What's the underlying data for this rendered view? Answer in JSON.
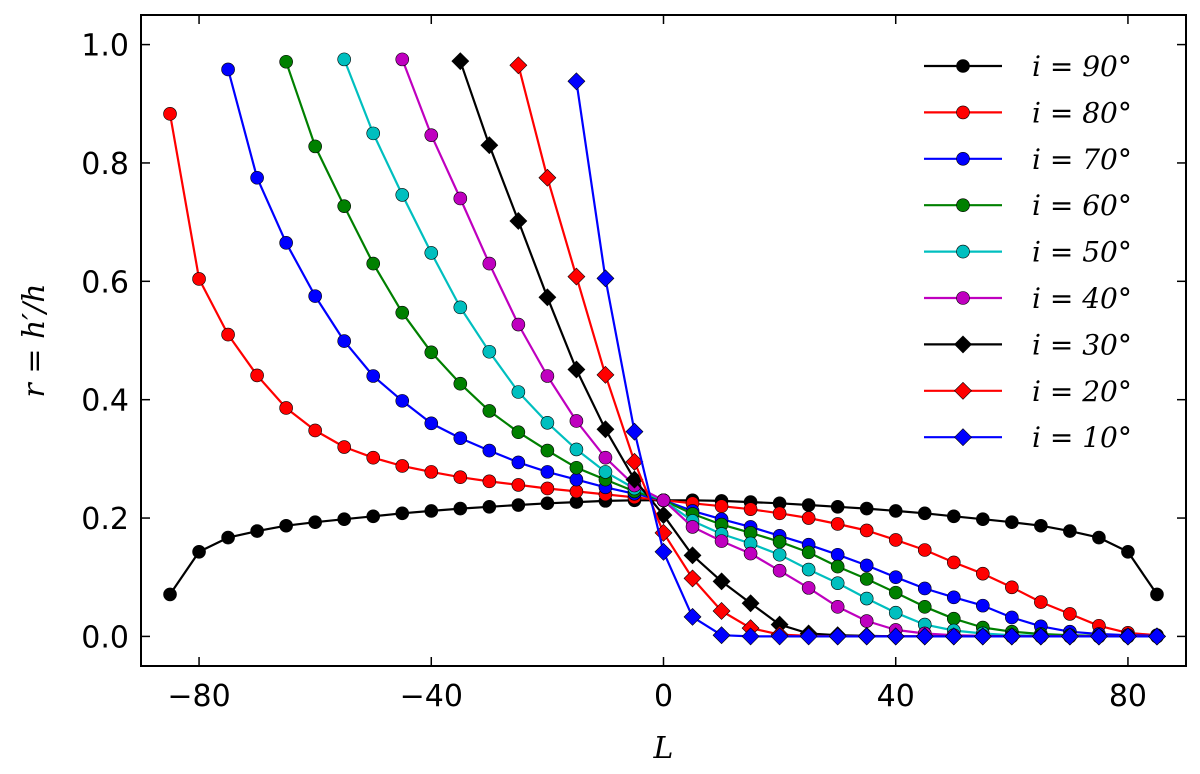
{
  "chart_data": {
    "type": "line",
    "title": "",
    "xlabel": "L",
    "ylabel": "r = h′/h",
    "xlim": [
      -90,
      90
    ],
    "ylim": [
      -0.05,
      1.05
    ],
    "xticks": [
      -80,
      -40,
      0,
      40,
      80
    ],
    "xtick_labels": [
      "−80",
      "−40",
      "0",
      "40",
      "80"
    ],
    "yticks": [
      0.0,
      0.2,
      0.4,
      0.6,
      0.8,
      1.0
    ],
    "ytick_labels": [
      "0.0",
      "0.2",
      "0.4",
      "0.6",
      "0.8",
      "1.0"
    ],
    "grid": false,
    "legend_position": "top-right",
    "series": [
      {
        "name": "i = 90°",
        "color": "#000000",
        "marker": "circle",
        "x": [
          -85,
          -80,
          -75,
          -70,
          -65,
          -60,
          -55,
          -50,
          -45,
          -40,
          -35,
          -30,
          -25,
          -20,
          -15,
          -10,
          -5,
          0,
          5,
          10,
          15,
          20,
          25,
          30,
          35,
          40,
          45,
          50,
          55,
          60,
          65,
          70,
          75,
          80,
          85
        ],
        "y": [
          0.071,
          0.143,
          0.167,
          0.178,
          0.187,
          0.193,
          0.198,
          0.203,
          0.208,
          0.212,
          0.216,
          0.219,
          0.222,
          0.225,
          0.227,
          0.229,
          0.23,
          0.23,
          0.23,
          0.229,
          0.227,
          0.225,
          0.222,
          0.219,
          0.216,
          0.212,
          0.208,
          0.203,
          0.198,
          0.193,
          0.187,
          0.178,
          0.167,
          0.143,
          0.071
        ]
      },
      {
        "name": "i = 80°",
        "color": "#ff0000",
        "marker": "circle",
        "x": [
          -85,
          -80,
          -75,
          -70,
          -65,
          -60,
          -55,
          -50,
          -45,
          -40,
          -35,
          -30,
          -25,
          -20,
          -15,
          -10,
          -5,
          0,
          5,
          10,
          15,
          20,
          25,
          30,
          35,
          40,
          45,
          50,
          55,
          60,
          65,
          70,
          75,
          80,
          85
        ],
        "y": [
          0.883,
          0.604,
          0.51,
          0.441,
          0.386,
          0.348,
          0.32,
          0.302,
          0.288,
          0.278,
          0.269,
          0.262,
          0.256,
          0.25,
          0.245,
          0.24,
          0.235,
          0.23,
          0.225,
          0.22,
          0.215,
          0.208,
          0.2,
          0.19,
          0.179,
          0.163,
          0.146,
          0.125,
          0.106,
          0.083,
          0.058,
          0.038,
          0.018,
          0.006,
          0.002
        ]
      },
      {
        "name": "i = 70°",
        "color": "#0000ff",
        "marker": "circle",
        "x": [
          -75,
          -70,
          -65,
          -60,
          -55,
          -50,
          -45,
          -40,
          -35,
          -30,
          -25,
          -20,
          -15,
          -10,
          -5,
          0,
          5,
          10,
          15,
          20,
          25,
          30,
          35,
          40,
          45,
          50,
          55,
          60,
          65,
          70,
          75,
          80,
          85
        ],
        "y": [
          0.958,
          0.775,
          0.665,
          0.575,
          0.499,
          0.44,
          0.398,
          0.36,
          0.335,
          0.314,
          0.294,
          0.278,
          0.265,
          0.252,
          0.241,
          0.23,
          0.212,
          0.198,
          0.185,
          0.17,
          0.155,
          0.138,
          0.12,
          0.1,
          0.081,
          0.066,
          0.052,
          0.032,
          0.017,
          0.008,
          0.004,
          0.002,
          0.001
        ]
      },
      {
        "name": "i = 60°",
        "color": "#008000",
        "marker": "circle",
        "x": [
          -65,
          -60,
          -55,
          -50,
          -45,
          -40,
          -35,
          -30,
          -25,
          -20,
          -15,
          -10,
          -5,
          0,
          5,
          10,
          15,
          20,
          25,
          30,
          35,
          40,
          45,
          50,
          55,
          60,
          65,
          70,
          75,
          80,
          85
        ],
        "y": [
          0.971,
          0.828,
          0.727,
          0.63,
          0.547,
          0.48,
          0.427,
          0.381,
          0.345,
          0.314,
          0.285,
          0.265,
          0.245,
          0.23,
          0.207,
          0.189,
          0.175,
          0.16,
          0.142,
          0.118,
          0.097,
          0.074,
          0.05,
          0.03,
          0.015,
          0.008,
          0.004,
          0.002,
          0.001,
          0.0,
          0.0
        ]
      },
      {
        "name": "i = 50°",
        "color": "#00bfbf",
        "marker": "circle",
        "x": [
          -55,
          -50,
          -45,
          -40,
          -35,
          -30,
          -25,
          -20,
          -15,
          -10,
          -5,
          0,
          5,
          10,
          15,
          20,
          25,
          30,
          35,
          40,
          45,
          50,
          55,
          60,
          65,
          70,
          75,
          80,
          85
        ],
        "y": [
          0.975,
          0.85,
          0.746,
          0.648,
          0.556,
          0.481,
          0.413,
          0.361,
          0.316,
          0.278,
          0.25,
          0.23,
          0.195,
          0.173,
          0.157,
          0.138,
          0.113,
          0.09,
          0.064,
          0.04,
          0.02,
          0.01,
          0.005,
          0.002,
          0.001,
          0.0,
          0.0,
          0.0,
          0.0
        ]
      },
      {
        "name": "i = 40°",
        "color": "#bf00bf",
        "marker": "circle",
        "x": [
          -45,
          -40,
          -35,
          -30,
          -25,
          -20,
          -15,
          -10,
          -5,
          0,
          5,
          10,
          15,
          20,
          25,
          30,
          35,
          40,
          45,
          50,
          55,
          60,
          65,
          70,
          75,
          80,
          85
        ],
        "y": [
          0.975,
          0.847,
          0.74,
          0.63,
          0.527,
          0.44,
          0.364,
          0.302,
          0.255,
          0.23,
          0.185,
          0.161,
          0.14,
          0.111,
          0.082,
          0.05,
          0.026,
          0.011,
          0.005,
          0.002,
          0.001,
          0.0,
          0.0,
          0.0,
          0.0,
          0.0,
          0.0
        ]
      },
      {
        "name": "i = 30°",
        "color": "#000000",
        "marker": "diamond",
        "x": [
          -35,
          -30,
          -25,
          -20,
          -15,
          -10,
          -5,
          0,
          5,
          10,
          15,
          20,
          25,
          30,
          35,
          40,
          45,
          50,
          55,
          60,
          65,
          70,
          75,
          80,
          85
        ],
        "y": [
          0.972,
          0.83,
          0.702,
          0.573,
          0.451,
          0.35,
          0.265,
          0.205,
          0.137,
          0.093,
          0.056,
          0.02,
          0.005,
          0.002,
          0.001,
          0.0,
          0.0,
          0.0,
          0.0,
          0.0,
          0.0,
          0.0,
          0.0,
          0.0,
          0.0
        ]
      },
      {
        "name": "i = 20°",
        "color": "#ff0000",
        "marker": "diamond",
        "x": [
          -25,
          -20,
          -15,
          -10,
          -5,
          0,
          5,
          10,
          15,
          20,
          25,
          30,
          35,
          40,
          45,
          50,
          55,
          60,
          65,
          70,
          75,
          80,
          85
        ],
        "y": [
          0.965,
          0.775,
          0.608,
          0.442,
          0.295,
          0.175,
          0.098,
          0.043,
          0.014,
          0.003,
          0.001,
          0.0,
          0.0,
          0.0,
          0.0,
          0.0,
          0.0,
          0.0,
          0.0,
          0.0,
          0.0,
          0.0,
          0.0
        ]
      },
      {
        "name": "i = 10°",
        "color": "#0000ff",
        "marker": "diamond",
        "x": [
          -15,
          -10,
          -5,
          0,
          5,
          10,
          15,
          20,
          25,
          30,
          35,
          40,
          45,
          50,
          55,
          60,
          65,
          70,
          75,
          80,
          85
        ],
        "y": [
          0.938,
          0.605,
          0.346,
          0.143,
          0.033,
          0.002,
          0.0,
          0.0,
          0.0,
          0.0,
          0.0,
          0.0,
          0.0,
          0.0,
          0.0,
          0.0,
          0.0,
          0.0,
          0.0,
          0.0,
          0.0
        ]
      }
    ]
  }
}
